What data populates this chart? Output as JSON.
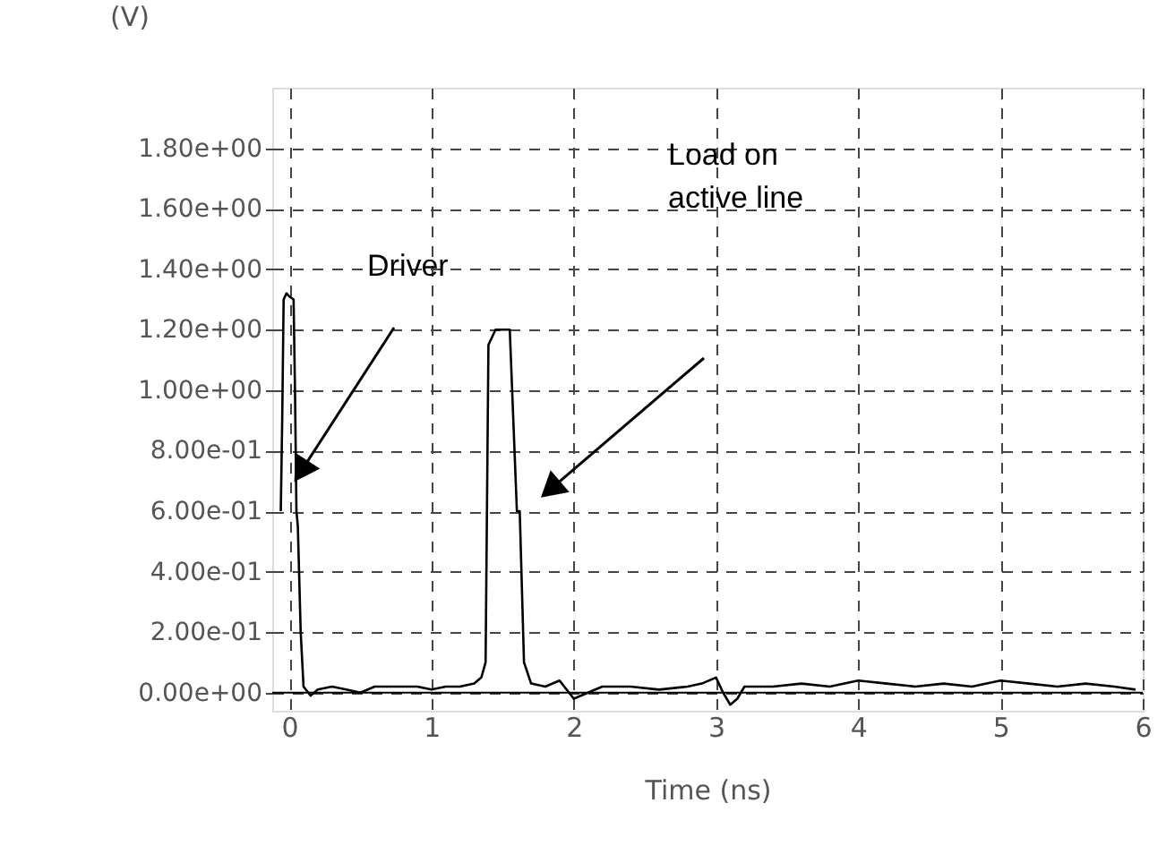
{
  "chart_data": {
    "type": "line",
    "xlabel": "Time (ns)",
    "ylabel": "(V)",
    "xlim": [
      -0.12,
      6.0
    ],
    "ylim": [
      -0.06,
      2.0
    ],
    "xticks": [
      0,
      1,
      2,
      3,
      4,
      5,
      6
    ],
    "yticks": [
      {
        "value": 0,
        "label": "0.00e+00"
      },
      {
        "value": 0.2,
        "label": "2.00e-01"
      },
      {
        "value": 0.4,
        "label": "4.00e-01"
      },
      {
        "value": 0.6,
        "label": "6.00e-01"
      },
      {
        "value": 0.8,
        "label": "8.00e-01"
      },
      {
        "value": 1.0,
        "label": "1.00e+00"
      },
      {
        "value": 1.2,
        "label": "1.20e+00"
      },
      {
        "value": 1.4,
        "label": "1.40e+00"
      },
      {
        "value": 1.6,
        "label": "1.60e+00"
      },
      {
        "value": 1.8,
        "label": "1.80e+00"
      }
    ],
    "grid": true,
    "line_style": "solid",
    "marker": "none",
    "x": [
      -0.06,
      -0.05,
      -0.04,
      -0.02,
      0.0,
      0.03,
      0.04,
      0.05,
      0.06,
      0.08,
      0.1,
      0.15,
      0.2,
      0.3,
      0.4,
      0.5,
      0.6,
      0.8,
      0.9,
      1.0,
      1.1,
      1.2,
      1.3,
      1.35,
      1.38,
      1.4,
      1.45,
      1.5,
      1.55,
      1.6,
      1.62,
      1.65,
      1.7,
      1.8,
      1.9,
      2.0,
      2.2,
      2.4,
      2.6,
      2.8,
      2.9,
      3.0,
      3.05,
      3.1,
      3.15,
      3.2,
      3.4,
      3.6,
      3.8,
      4.0,
      4.2,
      4.4,
      4.6,
      4.8,
      5.0,
      5.2,
      5.4,
      5.6,
      5.8,
      5.95
    ],
    "series": [
      {
        "color": "#000000",
        "values": [
          0.6,
          0.9,
          1.3,
          1.32,
          1.31,
          1.3,
          1.0,
          0.6,
          0.55,
          0.2,
          0.02,
          -0.01,
          0.01,
          0.02,
          0.01,
          0.0,
          0.02,
          0.02,
          0.02,
          0.01,
          0.02,
          0.02,
          0.03,
          0.05,
          0.1,
          1.15,
          1.2,
          1.2,
          1.2,
          0.6,
          0.6,
          0.1,
          0.03,
          0.02,
          0.04,
          -0.02,
          0.02,
          0.02,
          0.01,
          0.02,
          0.03,
          0.05,
          0.0,
          -0.04,
          -0.02,
          0.02,
          0.02,
          0.03,
          0.02,
          0.04,
          0.03,
          0.02,
          0.03,
          0.02,
          0.04,
          0.03,
          0.02,
          0.03,
          0.02,
          0.01
        ]
      }
    ],
    "ref_lines": [
      {
        "axis": "y",
        "value": 0,
        "color": "#000000"
      }
    ],
    "annotations": [
      "Driver",
      "Load on\nactive line"
    ]
  }
}
